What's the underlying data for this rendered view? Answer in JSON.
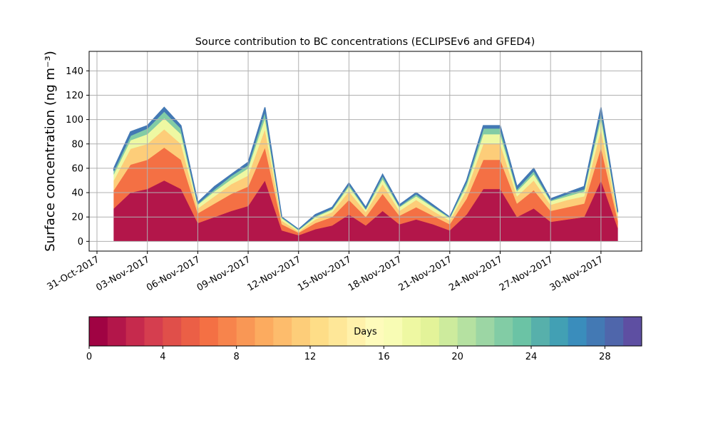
{
  "chart_data": {
    "type": "stackedarea",
    "title": "Source contribution to BC concentrations (ECLIPSEv6 and GFED4)",
    "y_label": "Surface concentration (ng m⁻³)",
    "x": [
      "2017-11-01",
      "2017-11-02",
      "2017-11-03",
      "2017-11-04",
      "2017-11-05",
      "2017-11-06",
      "2017-11-07",
      "2017-11-08",
      "2017-11-09",
      "2017-11-10",
      "2017-11-11",
      "2017-11-12",
      "2017-11-13",
      "2017-11-14",
      "2017-11-15",
      "2017-11-16",
      "2017-11-17",
      "2017-11-18",
      "2017-11-19",
      "2017-11-20",
      "2017-11-21",
      "2017-11-22",
      "2017-11-23",
      "2017-11-24",
      "2017-11-25",
      "2017-11-26",
      "2017-11-27",
      "2017-11-28",
      "2017-11-29",
      "2017-11-30",
      "2017-12-01"
    ],
    "series": [
      {
        "color": "#b3164a",
        "values": [
          27,
          40,
          43,
          50,
          43,
          15,
          20,
          25,
          29,
          50,
          9,
          5,
          10,
          13,
          22,
          13,
          25,
          14,
          18,
          14,
          9,
          22,
          43,
          43,
          20,
          27,
          16,
          18,
          20,
          50,
          11
        ]
      },
      {
        "color": "#f47044",
        "values": [
          15,
          23,
          24,
          27,
          24,
          8,
          11,
          14,
          16,
          27,
          5,
          2,
          5,
          7,
          12,
          7,
          14,
          7,
          10,
          7,
          5,
          13,
          24,
          24,
          11,
          15,
          9,
          10,
          11,
          27,
          6
        ]
      },
      {
        "color": "#fdcd79",
        "values": [
          8,
          13,
          13,
          15,
          13,
          4,
          6,
          8,
          9,
          15,
          3,
          1,
          3,
          4,
          7,
          4,
          8,
          4,
          6,
          4,
          3,
          7,
          13,
          13,
          6,
          8,
          5,
          6,
          6,
          15,
          4
        ]
      },
      {
        "color": "#eef8a2",
        "values": [
          5,
          7,
          8,
          9,
          8,
          3,
          4,
          4,
          6,
          9,
          2,
          1,
          2,
          2,
          4,
          2,
          4,
          3,
          3,
          3,
          2,
          4,
          8,
          8,
          4,
          5,
          3,
          3,
          4,
          9,
          2
        ]
      },
      {
        "color": "#82cca5",
        "values": [
          3,
          4,
          5,
          6,
          5,
          1,
          2,
          3,
          3,
          6,
          1,
          1,
          1,
          1,
          2,
          1,
          3,
          1,
          2,
          1,
          1,
          3,
          5,
          5,
          2,
          3,
          1,
          2,
          2,
          6,
          1
        ]
      },
      {
        "color": "#4379b4",
        "values": [
          2,
          3,
          2,
          3,
          2,
          1,
          2,
          1,
          2,
          3,
          0,
          0,
          1,
          1,
          1,
          1,
          1,
          1,
          1,
          1,
          0,
          1,
          2,
          2,
          2,
          2,
          1,
          1,
          2,
          3,
          1
        ]
      }
    ],
    "xlim": [
      "2017-10-31",
      "2017-12-02"
    ],
    "xticks": [
      {
        "value": "2017-10-31",
        "label": "31-Oct-2017"
      },
      {
        "value": "2017-11-03",
        "label": "03-Nov-2017"
      },
      {
        "value": "2017-11-06",
        "label": "06-Nov-2017"
      },
      {
        "value": "2017-11-09",
        "label": "09-Nov-2017"
      },
      {
        "value": "2017-11-12",
        "label": "12-Nov-2017"
      },
      {
        "value": "2017-11-15",
        "label": "15-Nov-2017"
      },
      {
        "value": "2017-11-18",
        "label": "18-Nov-2017"
      },
      {
        "value": "2017-11-21",
        "label": "21-Nov-2017"
      },
      {
        "value": "2017-11-24",
        "label": "24-Nov-2017"
      },
      {
        "value": "2017-11-27",
        "label": "27-Nov-2017"
      },
      {
        "value": "2017-11-30",
        "label": "30-Nov-2017"
      }
    ],
    "ylim": [
      -8,
      156
    ],
    "yticks": [
      0,
      20,
      40,
      60,
      80,
      100,
      120,
      140
    ],
    "grid": true,
    "colorbar": {
      "label": "Days",
      "lim": [
        0,
        30
      ],
      "ticks": [
        0,
        4,
        8,
        12,
        16,
        20,
        24,
        28
      ],
      "colors": [
        "#a00343",
        "#b3164a",
        "#c62a4d",
        "#d53e4f",
        "#e04f4a",
        "#eb5f46",
        "#f47044",
        "#f7844c",
        "#f99755",
        "#fcab5f",
        "#fdbc6c",
        "#fdcd79",
        "#fedd87",
        "#fee798",
        "#fff1ab",
        "#fefbbb",
        "#f8fcb4",
        "#eef8a2",
        "#e3f399",
        "#cdeb9d",
        "#b5e1a1",
        "#9cd6a4",
        "#82cca5",
        "#6bc3a5",
        "#57b0ab",
        "#42a0b4",
        "#3a8dbc",
        "#4379b4",
        "#4f66ab",
        "#5e4fa2"
      ]
    }
  }
}
